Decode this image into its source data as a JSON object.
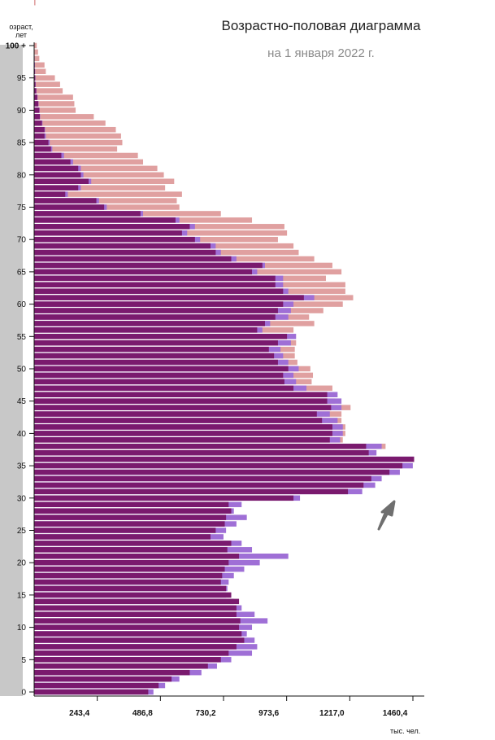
{
  "chart_data": {
    "type": "bar",
    "orientation": "horizontal",
    "title": "Возрастно-половая диаграмма",
    "subtitle": "на 1 января 2022 г.",
    "ylabel_line1": "озраст,",
    "ylabel_line2": "лет",
    "xunit": "тыс. чел.",
    "yticks": [
      "0",
      "5",
      "10",
      "15",
      "20",
      "25",
      "30",
      "35",
      "40",
      "45",
      "50",
      "55",
      "60",
      "65",
      "70",
      "75",
      "80",
      "85",
      "90",
      "95",
      "100 +"
    ],
    "xticks": [
      "243,4",
      "486,8",
      "730,2",
      "973,6",
      "1217,0",
      "1460,4"
    ],
    "xlim": [
      0,
      1480
    ],
    "ages": [
      0,
      1,
      2,
      3,
      4,
      5,
      6,
      7,
      8,
      9,
      10,
      11,
      12,
      13,
      14,
      15,
      16,
      17,
      18,
      19,
      20,
      21,
      22,
      23,
      24,
      25,
      26,
      27,
      28,
      29,
      30,
      31,
      32,
      33,
      34,
      35,
      36,
      37,
      38,
      39,
      40,
      41,
      42,
      43,
      44,
      45,
      46,
      47,
      48,
      49,
      50,
      51,
      52,
      53,
      54,
      55,
      56,
      57,
      58,
      59,
      60,
      61,
      62,
      63,
      64,
      65,
      66,
      67,
      68,
      69,
      70,
      71,
      72,
      73,
      74,
      75,
      76,
      77,
      78,
      79,
      80,
      81,
      82,
      83,
      84,
      85,
      86,
      87,
      88,
      89,
      90,
      91,
      92,
      93,
      94,
      95,
      96,
      97,
      98,
      99,
      100
    ],
    "series": [
      {
        "name": "",
        "color": "#7a1a6e",
        "values": [
          440,
          480,
          530,
          600,
          670,
          720,
          750,
          780,
          810,
          800,
          790,
          795,
          780,
          780,
          790,
          760,
          740,
          720,
          725,
          735,
          750,
          790,
          745,
          760,
          680,
          700,
          735,
          740,
          760,
          750,
          1000,
          1210,
          1270,
          1300,
          1370,
          1420,
          1465,
          1290,
          1280,
          1140,
          1150,
          1150,
          1110,
          1090,
          1145,
          1130,
          1130,
          1000,
          965,
          960,
          980,
          940,
          925,
          905,
          940,
          975,
          860,
          890,
          930,
          940,
          960,
          1040,
          960,
          930,
          930,
          840,
          880,
          760,
          700,
          680,
          620,
          570,
          600,
          545,
          410,
          270,
          240,
          120,
          170,
          210,
          180,
          170,
          140,
          105,
          65,
          55,
          40,
          40,
          30,
          22,
          20,
          16,
          12,
          8,
          5,
          4,
          3,
          2,
          1,
          1,
          0
        ]
      },
      {
        "name": "",
        "color": "#9f6fd6",
        "values": [
          460,
          505,
          560,
          645,
          705,
          760,
          840,
          860,
          850,
          820,
          840,
          900,
          850,
          800,
          770,
          740,
          745,
          750,
          770,
          810,
          870,
          980,
          840,
          800,
          730,
          740,
          780,
          820,
          770,
          800,
          1025,
          1265,
          1315,
          1340,
          1410,
          1460,
          1465,
          1320,
          1340,
          1180,
          1190,
          1190,
          1170,
          1140,
          1185,
          1185,
          1170,
          1050,
          1010,
          1000,
          1020,
          980,
          960,
          950,
          990,
          1010,
          880,
          910,
          980,
          990,
          1000,
          1080,
          980,
          960,
          960,
          860,
          890,
          780,
          720,
          700,
          640,
          590,
          620,
          560,
          420,
          280,
          250,
          130,
          180,
          220,
          190,
          180,
          150,
          115,
          70,
          60,
          45,
          42,
          32,
          23,
          21,
          17,
          13,
          9,
          6,
          5,
          4,
          3,
          2,
          1,
          1
        ]
      },
      {
        "name": "",
        "color": "#e0a0a0",
        "values": [
          0,
          0,
          0,
          0,
          0,
          0,
          0,
          0,
          0,
          0,
          0,
          0,
          0,
          0,
          0,
          0,
          0,
          0,
          0,
          0,
          0,
          0,
          0,
          0,
          0,
          0,
          0,
          0,
          0,
          0,
          0,
          0,
          0,
          0,
          0,
          0,
          0,
          1315,
          1355,
          1190,
          1200,
          1200,
          1185,
          1185,
          1220,
          1160,
          1130,
          1150,
          1070,
          1075,
          1065,
          1015,
          1005,
          1005,
          1010,
          970,
          1000,
          1080,
          1060,
          1115,
          1190,
          1230,
          1200,
          1200,
          1125,
          1185,
          1150,
          1080,
          1020,
          1000,
          940,
          975,
          965,
          840,
          720,
          560,
          550,
          570,
          505,
          540,
          500,
          475,
          420,
          400,
          320,
          340,
          335,
          315,
          275,
          230,
          160,
          155,
          150,
          110,
          100,
          80,
          45,
          40,
          20,
          15,
          10,
          5
        ]
      }
    ]
  }
}
